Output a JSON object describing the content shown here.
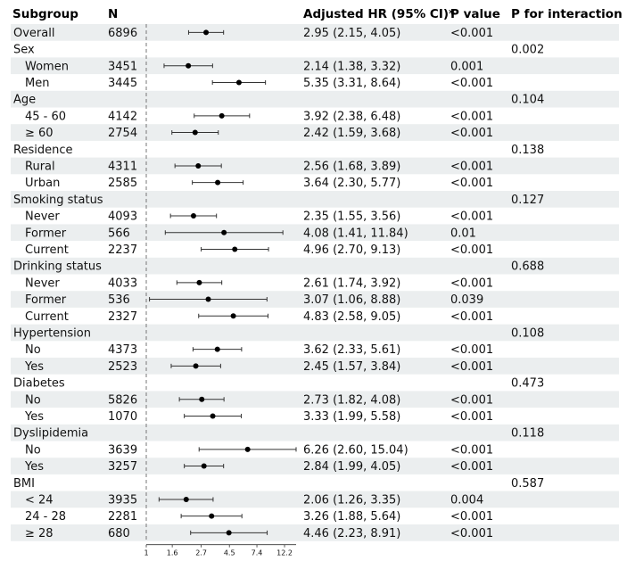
{
  "chart_data": {
    "type": "forest",
    "columns": {
      "subgroup": "Subgroup",
      "n": "N",
      "hr": "Adjusted HR (95% CI)*",
      "p": "P value",
      "p_int": "P for interaction"
    },
    "x_scale": "log",
    "xlim": [
      1,
      15.04
    ],
    "reference_line": 1,
    "x_ticks": [
      "1",
      "1.6",
      "2.7",
      "4.5",
      "7.4",
      "12.2"
    ],
    "x_tick_values": [
      1,
      1.6,
      2.7,
      4.5,
      7.4,
      12.2
    ],
    "rows": [
      {
        "label": "Overall",
        "indent": false,
        "n": "6896",
        "hr": 2.95,
        "lo": 2.15,
        "hi": 4.05,
        "ci_text": "2.95 (2.15, 4.05)",
        "p": "<0.001",
        "p_int": ""
      },
      {
        "label": "Sex",
        "indent": false,
        "header": true,
        "p_int": "0.002"
      },
      {
        "label": "Women",
        "indent": true,
        "n": "3451",
        "hr": 2.14,
        "lo": 1.38,
        "hi": 3.32,
        "ci_text": "2.14 (1.38, 3.32)",
        "p": "0.001",
        "p_int": ""
      },
      {
        "label": "Men",
        "indent": true,
        "n": "3445",
        "hr": 5.35,
        "lo": 3.31,
        "hi": 8.64,
        "ci_text": "5.35 (3.31, 8.64)",
        "p": "<0.001",
        "p_int": ""
      },
      {
        "label": "Age",
        "indent": false,
        "header": true,
        "p_int": "0.104"
      },
      {
        "label": "45 - 60",
        "indent": true,
        "n": "4142",
        "hr": 3.92,
        "lo": 2.38,
        "hi": 6.48,
        "ci_text": "3.92 (2.38, 6.48)",
        "p": "<0.001",
        "p_int": ""
      },
      {
        "label": "≥ 60",
        "indent": true,
        "n": "2754",
        "hr": 2.42,
        "lo": 1.59,
        "hi": 3.68,
        "ci_text": "2.42 (1.59, 3.68)",
        "p": "<0.001",
        "p_int": ""
      },
      {
        "label": "Residence",
        "indent": false,
        "header": true,
        "p_int": "0.138"
      },
      {
        "label": "Rural",
        "indent": true,
        "n": "4311",
        "hr": 2.56,
        "lo": 1.68,
        "hi": 3.89,
        "ci_text": "2.56 (1.68, 3.89)",
        "p": "<0.001",
        "p_int": ""
      },
      {
        "label": "Urban",
        "indent": true,
        "n": "2585",
        "hr": 3.64,
        "lo": 2.3,
        "hi": 5.77,
        "ci_text": "3.64 (2.30, 5.77)",
        "p": "<0.001",
        "p_int": ""
      },
      {
        "label": "Smoking status",
        "indent": false,
        "header": true,
        "p_int": "0.127"
      },
      {
        "label": "Never",
        "indent": true,
        "n": "4093",
        "hr": 2.35,
        "lo": 1.55,
        "hi": 3.56,
        "ci_text": "2.35 (1.55, 3.56)",
        "p": "<0.001",
        "p_int": ""
      },
      {
        "label": "Former",
        "indent": true,
        "n": "566",
        "hr": 4.08,
        "lo": 1.41,
        "hi": 11.84,
        "ci_text": "4.08 (1.41, 11.84)",
        "p": "0.01",
        "p_int": ""
      },
      {
        "label": "Current",
        "indent": true,
        "n": "2237",
        "hr": 4.96,
        "lo": 2.7,
        "hi": 9.13,
        "ci_text": "4.96 (2.70, 9.13)",
        "p": "<0.001",
        "p_int": ""
      },
      {
        "label": "Drinking status",
        "indent": false,
        "header": true,
        "p_int": "0.688"
      },
      {
        "label": "Never",
        "indent": true,
        "n": "4033",
        "hr": 2.61,
        "lo": 1.74,
        "hi": 3.92,
        "ci_text": "2.61 (1.74, 3.92)",
        "p": "<0.001",
        "p_int": ""
      },
      {
        "label": "Former",
        "indent": true,
        "n": "536",
        "hr": 3.07,
        "lo": 1.06,
        "hi": 8.88,
        "ci_text": "3.07 (1.06, 8.88)",
        "p": "0.039",
        "p_int": ""
      },
      {
        "label": "Current",
        "indent": true,
        "n": "2327",
        "hr": 4.83,
        "lo": 2.58,
        "hi": 9.05,
        "ci_text": "4.83 (2.58, 9.05)",
        "p": "<0.001",
        "p_int": ""
      },
      {
        "label": "Hypertension",
        "indent": false,
        "header": true,
        "p_int": "0.108"
      },
      {
        "label": "No",
        "indent": true,
        "n": "4373",
        "hr": 3.62,
        "lo": 2.33,
        "hi": 5.61,
        "ci_text": "3.62 (2.33, 5.61)",
        "p": "<0.001",
        "p_int": ""
      },
      {
        "label": "Yes",
        "indent": true,
        "n": "2523",
        "hr": 2.45,
        "lo": 1.57,
        "hi": 3.84,
        "ci_text": "2.45 (1.57, 3.84)",
        "p": "<0.001",
        "p_int": ""
      },
      {
        "label": "Diabetes",
        "indent": false,
        "header": true,
        "p_int": "0.473"
      },
      {
        "label": "No",
        "indent": true,
        "n": "5826",
        "hr": 2.73,
        "lo": 1.82,
        "hi": 4.08,
        "ci_text": "2.73 (1.82, 4.08)",
        "p": "<0.001",
        "p_int": ""
      },
      {
        "label": "Yes",
        "indent": true,
        "n": "1070",
        "hr": 3.33,
        "lo": 1.99,
        "hi": 5.58,
        "ci_text": "3.33 (1.99, 5.58)",
        "p": "<0.001",
        "p_int": ""
      },
      {
        "label": "Dyslipidemia",
        "indent": false,
        "header": true,
        "p_int": "0.118"
      },
      {
        "label": "No",
        "indent": true,
        "n": "3639",
        "hr": 6.26,
        "lo": 2.6,
        "hi": 15.04,
        "ci_text": "6.26 (2.60, 15.04)",
        "p": "<0.001",
        "p_int": ""
      },
      {
        "label": "Yes",
        "indent": true,
        "n": "3257",
        "hr": 2.84,
        "lo": 1.99,
        "hi": 4.05,
        "ci_text": "2.84 (1.99, 4.05)",
        "p": "<0.001",
        "p_int": ""
      },
      {
        "label": "BMI",
        "indent": false,
        "header": true,
        "p_int": "0.587"
      },
      {
        "label": "< 24",
        "indent": true,
        "n": "3935",
        "hr": 2.06,
        "lo": 1.26,
        "hi": 3.35,
        "ci_text": "2.06 (1.26, 3.35)",
        "p": "0.004",
        "p_int": ""
      },
      {
        "label": "24 - 28",
        "indent": true,
        "n": "2281",
        "hr": 3.26,
        "lo": 1.88,
        "hi": 5.64,
        "ci_text": "3.26 (1.88, 5.64)",
        "p": "<0.001",
        "p_int": ""
      },
      {
        "label": "≥ 28",
        "indent": true,
        "n": "680",
        "hr": 4.46,
        "lo": 2.23,
        "hi": 8.91,
        "ci_text": "4.46 (2.23, 8.91)",
        "p": "<0.001",
        "p_int": ""
      }
    ],
    "colors": {
      "stripe": "#ebeeef",
      "point": "#000000",
      "ci_line": "#333333",
      "ref_line": "#777777",
      "text": "#111111"
    }
  }
}
